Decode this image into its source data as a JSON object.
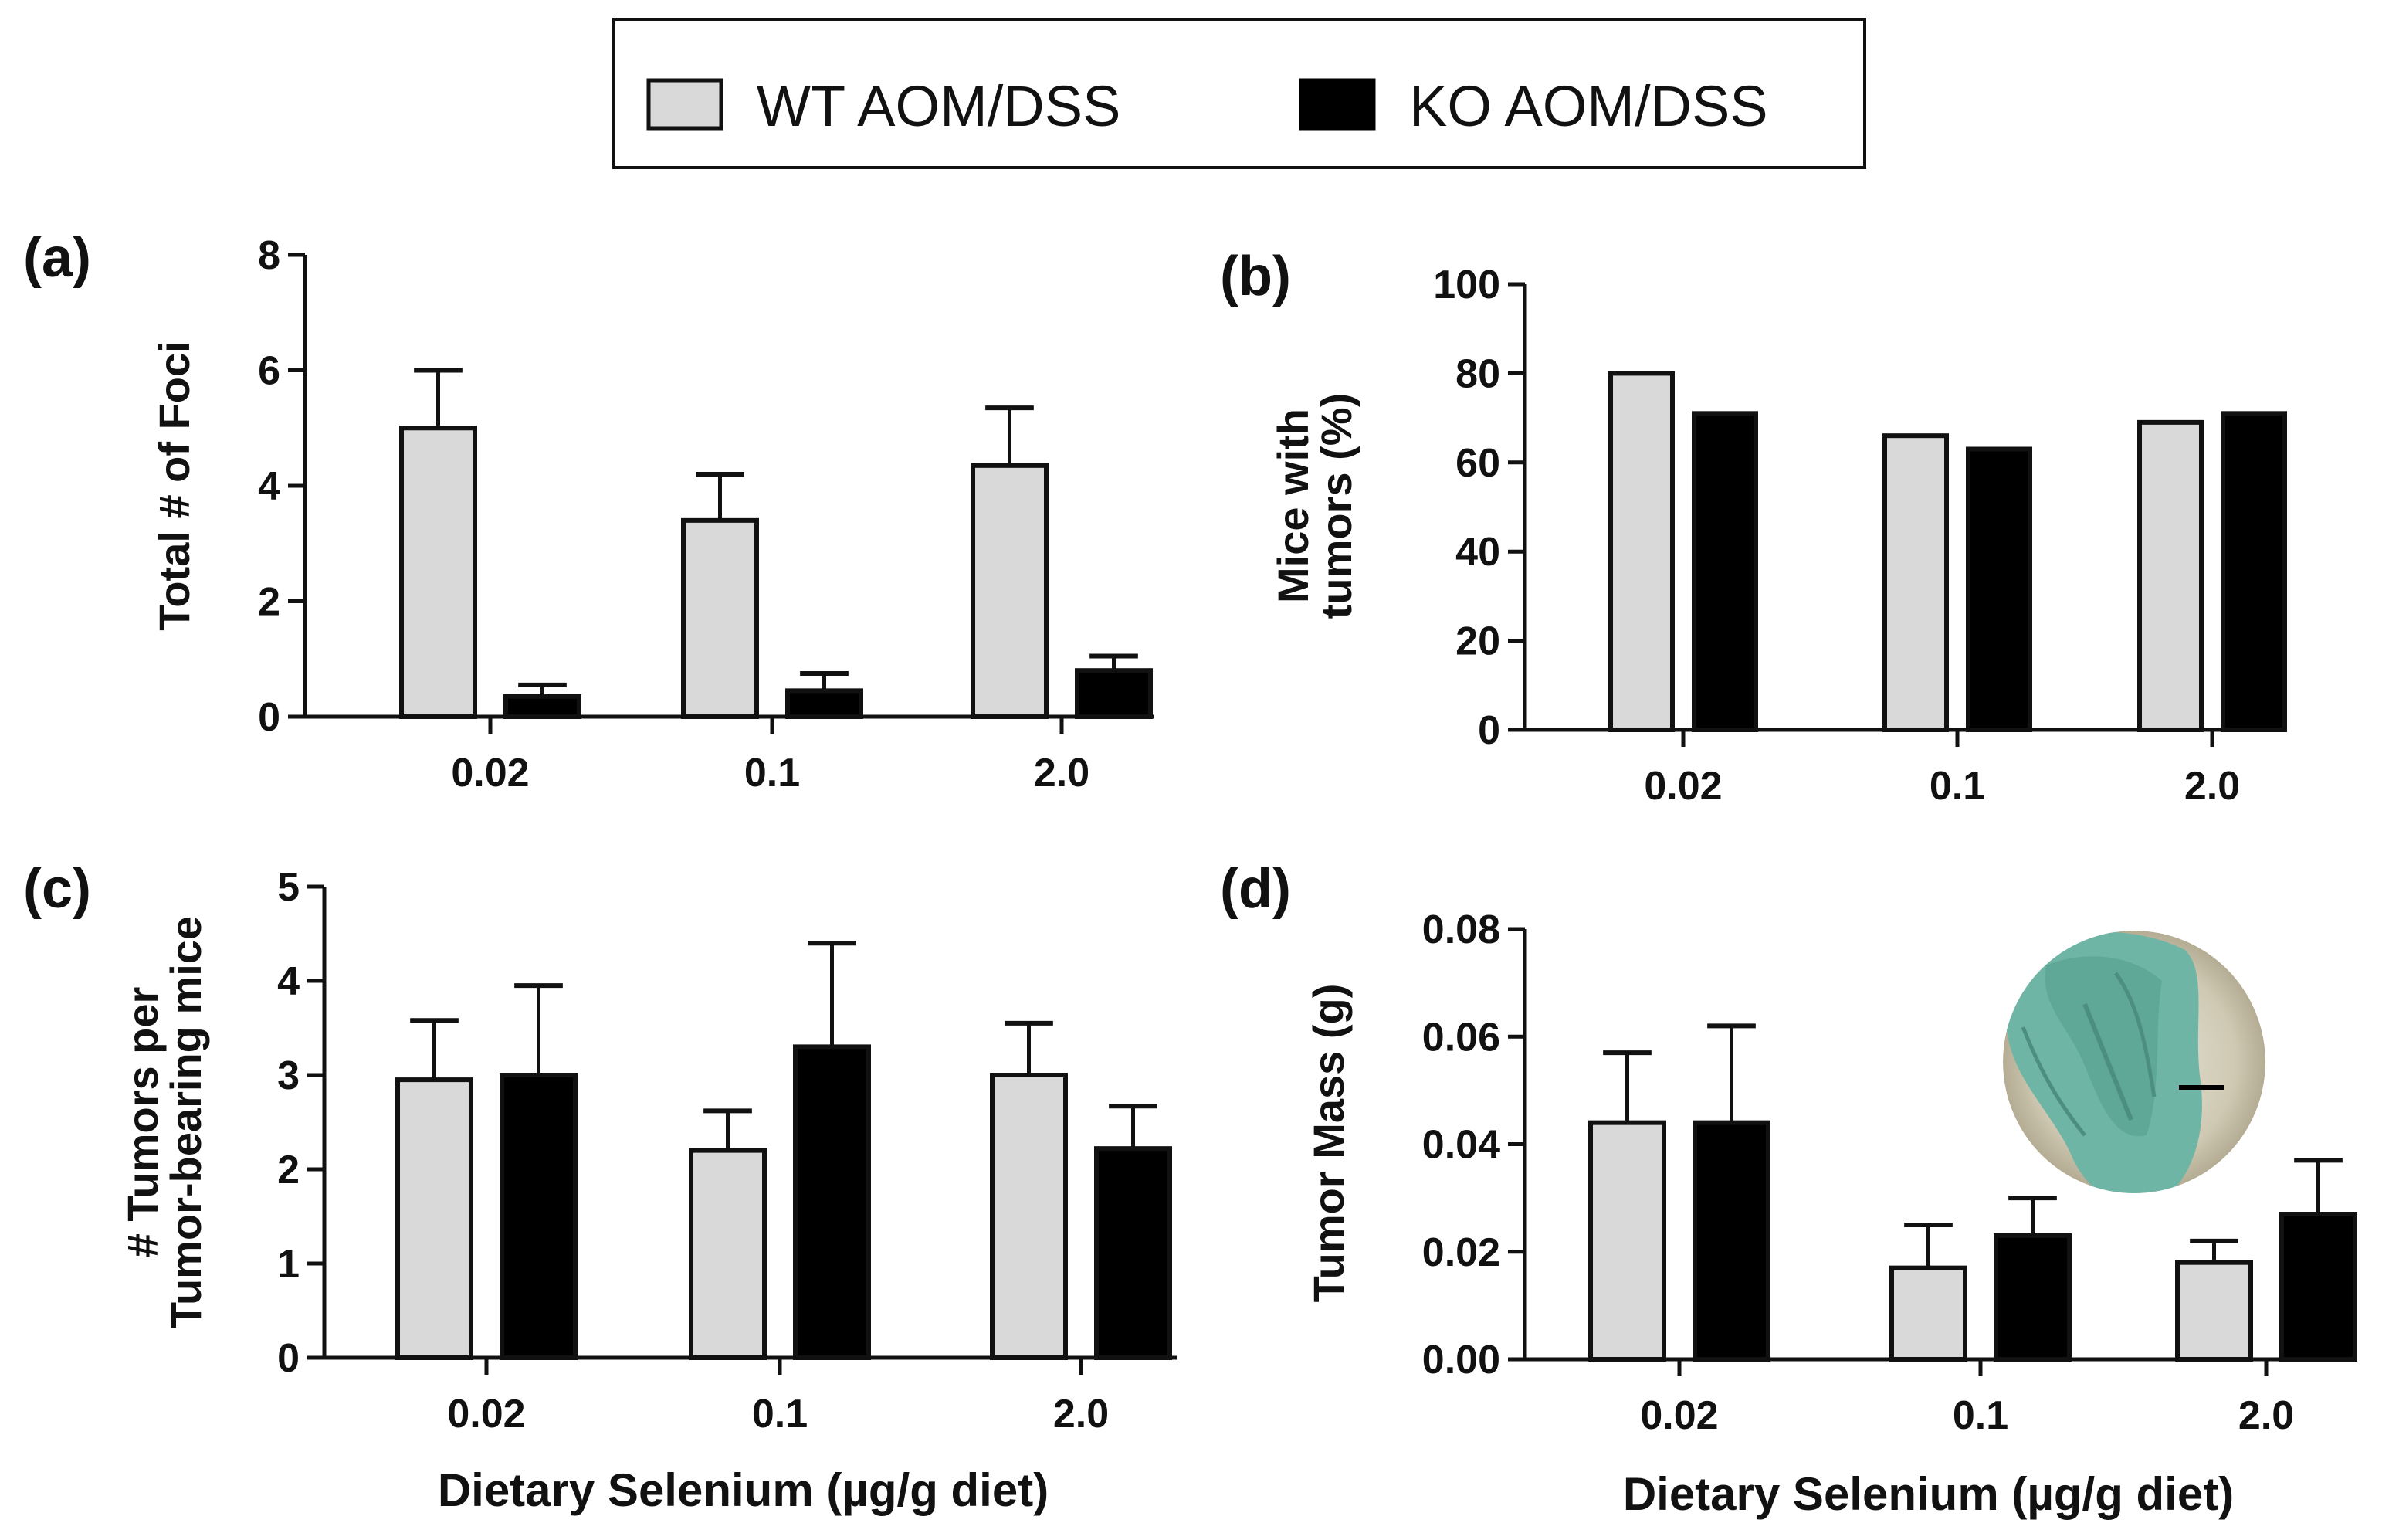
{
  "legend": {
    "entries": [
      {
        "name": "WT AOM/DSS",
        "color": "#d9d9d9"
      },
      {
        "name": "KO AOM/DSS",
        "color": "#000000"
      }
    ]
  },
  "chart_data": [
    {
      "panel": "(a)",
      "type": "bar",
      "categories": [
        "0.02",
        "0.1",
        "2.0"
      ],
      "series": [
        {
          "name": "WT AOM/DSS",
          "values": [
            5.0,
            3.4,
            4.35
          ],
          "errors": [
            1.0,
            0.8,
            1.0
          ]
        },
        {
          "name": "KO AOM/DSS",
          "values": [
            0.35,
            0.45,
            0.8
          ],
          "errors": [
            0.2,
            0.3,
            0.25
          ]
        }
      ],
      "ylabel": "Total # of Foci",
      "xlabel": "",
      "ylim": [
        0,
        8
      ],
      "yticks": [
        "0",
        "2",
        "4",
        "6",
        "8"
      ]
    },
    {
      "panel": "(b)",
      "type": "bar",
      "categories": [
        "0.02",
        "0.1",
        "2.0"
      ],
      "series": [
        {
          "name": "WT AOM/DSS",
          "values": [
            80,
            66,
            69
          ],
          "errors": [
            0,
            0,
            0
          ]
        },
        {
          "name": "KO AOM/DSS",
          "values": [
            71,
            63,
            71
          ],
          "errors": [
            0,
            0,
            0
          ]
        }
      ],
      "ylabel": [
        "Mice with",
        "tumors (%)"
      ],
      "xlabel": "",
      "ylim": [
        0,
        100
      ],
      "yticks": [
        "0",
        "20",
        "40",
        "60",
        "80",
        "100"
      ]
    },
    {
      "panel": "(c)",
      "type": "bar",
      "categories": [
        "0.02",
        "0.1",
        "2.0"
      ],
      "series": [
        {
          "name": "WT AOM/DSS",
          "values": [
            2.95,
            2.2,
            3.0
          ],
          "errors": [
            0.63,
            0.42,
            0.55
          ]
        },
        {
          "name": "KO AOM/DSS",
          "values": [
            3.0,
            3.3,
            2.22
          ],
          "errors": [
            0.95,
            1.1,
            0.45
          ]
        }
      ],
      "ylabel": [
        "# Tumors per",
        "Tumor-bearing mice"
      ],
      "xlabel": "Dietary Selenium (µg/g diet)",
      "ylim": [
        0,
        5
      ],
      "yticks": [
        "0",
        "1",
        "2",
        "3",
        "4",
        "5"
      ]
    },
    {
      "panel": "(d)",
      "type": "bar",
      "categories": [
        "0.02",
        "0.1",
        "2.0"
      ],
      "series": [
        {
          "name": "WT AOM/DSS",
          "values": [
            0.044,
            0.017,
            0.018
          ],
          "errors": [
            0.013,
            0.008,
            0.004
          ]
        },
        {
          "name": "KO AOM/DSS",
          "values": [
            0.044,
            0.023,
            0.027
          ],
          "errors": [
            0.018,
            0.007,
            0.01
          ]
        }
      ],
      "ylabel": "Tumor Mass (g)",
      "xlabel": "Dietary Selenium (µg/g diet)",
      "ylim": [
        0,
        0.08
      ],
      "yticks": [
        "0.00",
        "0.02",
        "0.04",
        "0.06",
        "0.08"
      ]
    }
  ],
  "colors": {
    "wt": "#d9d9d9",
    "ko": "#000000",
    "axis": "#111111",
    "inset": "#6fb5a6"
  }
}
